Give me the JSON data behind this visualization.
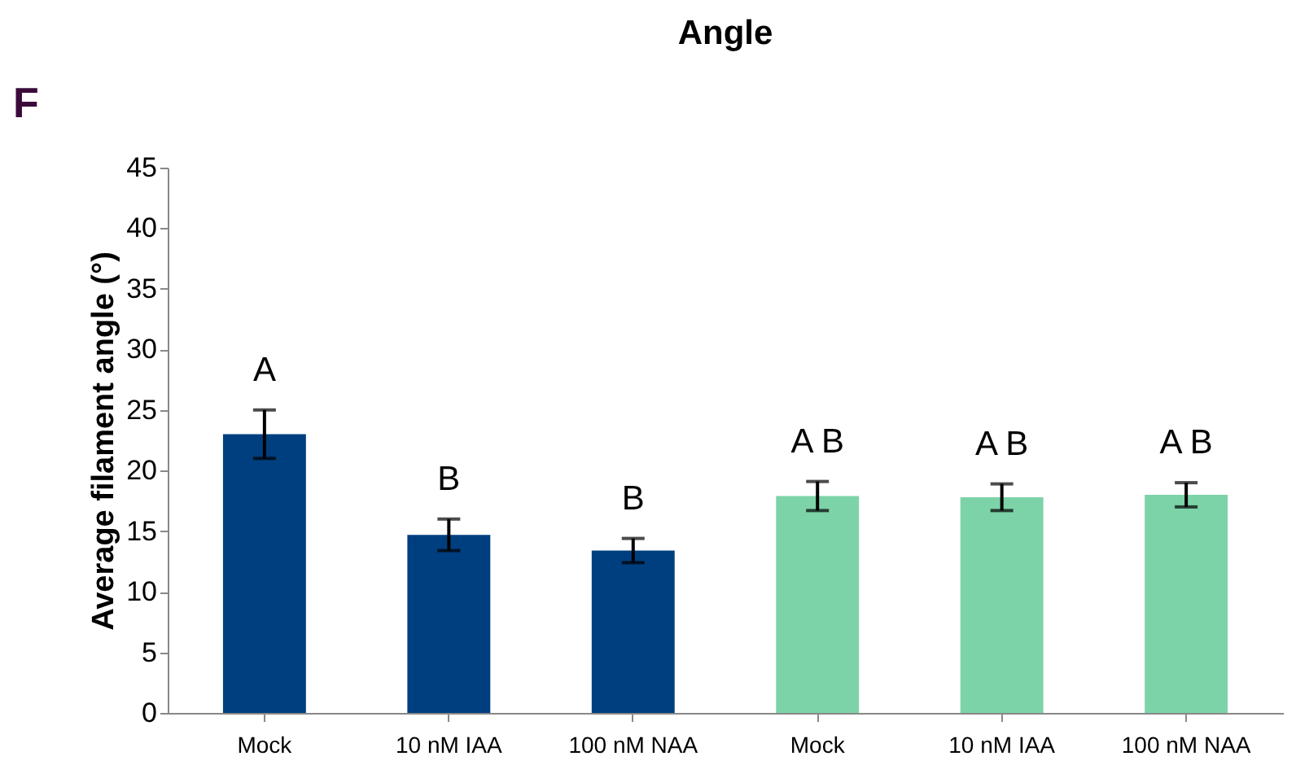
{
  "chart_data": {
    "type": "bar",
    "title": "Angle",
    "ylabel": "Average filament angle (°)",
    "categories": [
      "Mock",
      "10 nM IAA",
      "100 nM NAA",
      "Mock",
      "10 nM IAA",
      "100 nM NAA"
    ],
    "values": [
      23.0,
      14.7,
      13.4,
      17.9,
      17.8,
      18.0
    ],
    "errors": [
      2.0,
      1.3,
      1.0,
      1.2,
      1.1,
      1.0
    ],
    "colors": [
      "#003f7f",
      "#003f7f",
      "#003f7f",
      "#7dd3a8",
      "#7dd3a8",
      "#7dd3a8"
    ],
    "ylim": [
      0,
      45
    ],
    "yticks": [
      0,
      5,
      10,
      15,
      20,
      25,
      30,
      35,
      40,
      45
    ],
    "grid": false,
    "legend": false,
    "annotations": [
      "F",
      "A",
      "B",
      "B",
      "A B",
      "A B",
      "A B"
    ]
  }
}
